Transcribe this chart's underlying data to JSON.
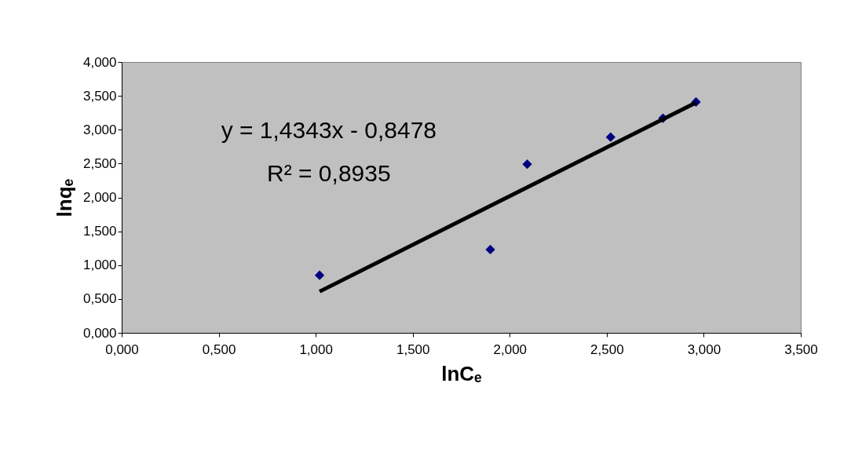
{
  "chart_data": {
    "type": "scatter",
    "xlabel": "lnCₑ",
    "ylabel": "lnqₑ",
    "x": [
      1.02,
      1.9,
      2.09,
      2.52,
      2.79,
      2.96
    ],
    "series": [
      {
        "color": "#000080",
        "marker": "diamond",
        "values": [
          0.85,
          1.23,
          2.49,
          2.89,
          3.17,
          3.41
        ]
      },
      {
        "type": "line",
        "color": "#000000",
        "x": [
          1.02,
          2.96
        ],
        "values": [
          0.61,
          3.4
        ]
      }
    ],
    "annotations": [
      "y = 1,4343x - 0,8478",
      "R² = 0,8935"
    ],
    "xlim": [
      0,
      3.5
    ],
    "ylim": [
      0,
      4
    ],
    "xticks": [
      {
        "value": 0,
        "label": "0,000"
      },
      {
        "value": 0.5,
        "label": "0,500"
      },
      {
        "value": 1,
        "label": "1,000"
      },
      {
        "value": 1.5,
        "label": "1,500"
      },
      {
        "value": 2,
        "label": "2,000"
      },
      {
        "value": 2.5,
        "label": "2,500"
      },
      {
        "value": 3,
        "label": "3,000"
      },
      {
        "value": 3.5,
        "label": "3,500"
      }
    ],
    "yticks": [
      {
        "value": 0,
        "label": "0,000"
      },
      {
        "value": 0.5,
        "label": "0,500"
      },
      {
        "value": 1,
        "label": "1,000"
      },
      {
        "value": 1.5,
        "label": "1,500"
      },
      {
        "value": 2,
        "label": "2,000"
      },
      {
        "value": 2.5,
        "label": "2,500"
      },
      {
        "value": 3,
        "label": "3,000"
      },
      {
        "value": 3.5,
        "label": "3,500"
      },
      {
        "value": 4,
        "label": "4,000"
      }
    ],
    "grid": false
  }
}
